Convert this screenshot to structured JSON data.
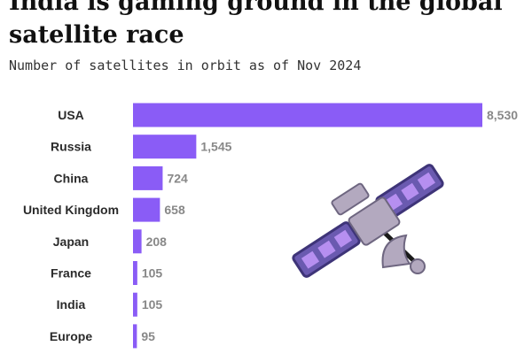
{
  "title": "India is gaming ground in the global satellite race",
  "subtitle": "Number of satellites in orbit as of Nov 2024",
  "colors": {
    "bar": "#8a5cf6",
    "satellite_panel": "#6a5ab0",
    "satellite_body": "#b3a9bf",
    "satellite_cell": "#b68ff0"
  },
  "illustration": {
    "icon": "satellite-icon"
  },
  "chart_data": {
    "type": "bar",
    "orientation": "horizontal",
    "categories": [
      "USA",
      "Russia",
      "China",
      "United Kingdom",
      "Japan",
      "France",
      "India",
      "Europe"
    ],
    "values": [
      8530,
      1545,
      724,
      658,
      208,
      105,
      105,
      95
    ],
    "value_labels": [
      "8,530",
      "1,545",
      "724",
      "658",
      "208",
      "105",
      "105",
      "95"
    ],
    "xlim": [
      0,
      8530
    ],
    "grid": false,
    "legend": "none"
  }
}
